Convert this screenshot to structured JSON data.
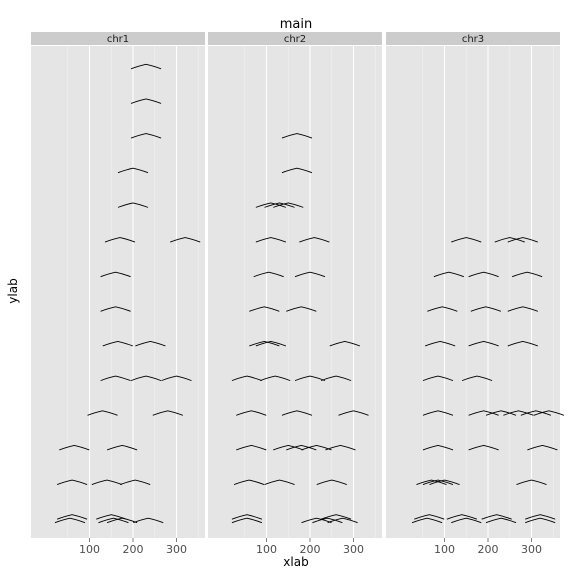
{
  "chart_data": {
    "type": "scatter",
    "title": "main",
    "xlabel": "xlab",
    "ylabel": "ylab",
    "xticks": [
      100,
      200,
      300
    ],
    "xlim": [
      0,
      400
    ],
    "ylim": [
      0.4,
      14.6
    ],
    "grid": true,
    "panel_background": "#e5e5e5",
    "strip_background": "#cccccc",
    "mark_color": "#000000",
    "panels": [
      {
        "name": "chr1",
        "segments": [
          {
            "y": 14,
            "xs": [
              230
            ]
          },
          {
            "y": 13,
            "xs": [
              230
            ]
          },
          {
            "y": 12,
            "xs": [
              230
            ]
          },
          {
            "y": 11,
            "xs": [
              200
            ]
          },
          {
            "y": 10,
            "xs": [
              200
            ]
          },
          {
            "y": 9,
            "xs": [
              170,
              320
            ]
          },
          {
            "y": 8,
            "xs": [
              160
            ]
          },
          {
            "y": 7,
            "xs": [
              160
            ]
          },
          {
            "y": 6,
            "xs": [
              165,
              240
            ]
          },
          {
            "y": 5,
            "xs": [
              160,
              230,
              300
            ]
          },
          {
            "y": 4,
            "xs": [
              130,
              280
            ]
          },
          {
            "y": 3,
            "xs": [
              65,
              175
            ]
          },
          {
            "y": 2,
            "xs": [
              60,
              140,
              205
            ]
          },
          {
            "y": 1,
            "xs": [
              60,
              150
            ]
          },
          {
            "y": 0.9,
            "xs": [
              55,
              155,
              175,
              235
            ]
          }
        ]
      },
      {
        "name": "chr2",
        "segments": [
          {
            "y": 12,
            "xs": [
              170
            ]
          },
          {
            "y": 11,
            "xs": [
              170
            ]
          },
          {
            "y": 10,
            "xs": [
              110,
              130,
              150
            ]
          },
          {
            "y": 9,
            "xs": [
              110,
              210
            ]
          },
          {
            "y": 8,
            "xs": [
              105,
              200
            ]
          },
          {
            "y": 7,
            "xs": [
              95,
              180
            ]
          },
          {
            "y": 6,
            "xs": [
              95,
              110,
              280
            ]
          },
          {
            "y": 5,
            "xs": [
              55,
              120,
              200,
              260
            ]
          },
          {
            "y": 4,
            "xs": [
              65,
              170,
              300
            ]
          },
          {
            "y": 3,
            "xs": [
              65,
              150,
              180,
              215,
              270
            ]
          },
          {
            "y": 2,
            "xs": [
              60,
              130,
              250
            ]
          },
          {
            "y": 1,
            "xs": [
              55,
              260
            ]
          },
          {
            "y": 0.9,
            "xs": [
              55,
              215,
              240,
              275
            ]
          }
        ]
      },
      {
        "name": "chr3",
        "segments": [
          {
            "y": 9,
            "xs": [
              150,
              250,
              280
            ]
          },
          {
            "y": 8,
            "xs": [
              110,
              190,
              290
            ]
          },
          {
            "y": 7,
            "xs": [
              95,
              195,
              280
            ]
          },
          {
            "y": 6,
            "xs": [
              90,
              190,
              280
            ]
          },
          {
            "y": 5,
            "xs": [
              85,
              175
            ]
          },
          {
            "y": 4,
            "xs": [
              85,
              190,
              230,
              270,
              310,
              340
            ]
          },
          {
            "y": 3,
            "xs": [
              85,
              190,
              325
            ]
          },
          {
            "y": 2,
            "xs": [
              70,
              85,
              100,
              300
            ]
          },
          {
            "y": 1,
            "xs": [
              65,
              140,
              220,
              320
            ]
          },
          {
            "y": 0.9,
            "xs": [
              60,
              150,
              230,
              320
            ]
          }
        ]
      }
    ]
  }
}
